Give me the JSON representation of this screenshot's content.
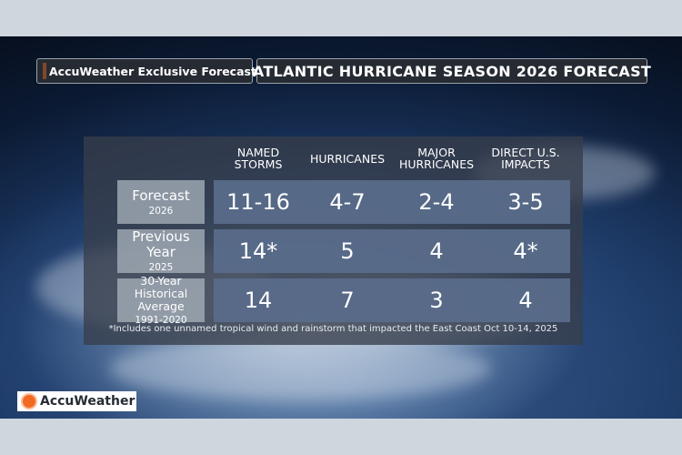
{
  "header": {
    "brand_label": "AccuWeather Exclusive Forecast",
    "title": "ATLANTIC HURRICANE SEASON 2026 FORECAST",
    "brand_icon": "accuweather-sun-icon"
  },
  "table": {
    "columns": [
      {
        "label": "NAMED\nSTORMS"
      },
      {
        "label": "HURRICANES"
      },
      {
        "label": "MAJOR\nHURRICANES"
      },
      {
        "label": "DIRECT U.S.\nIMPACTS"
      }
    ],
    "rows": [
      {
        "label": "Forecast",
        "sub": "2026",
        "values": [
          "11-16",
          "4-7",
          "2-4",
          "3-5"
        ]
      },
      {
        "label": "Previous Year",
        "sub": "2025",
        "values": [
          "14*",
          "5",
          "4",
          "4*"
        ]
      },
      {
        "label": "30-Year Historical Average",
        "sub": "1991-2020",
        "values": [
          "14",
          "7",
          "3",
          "4"
        ]
      }
    ],
    "footnote": "*Includes one unnamed tropical wind and rainstorm that impacted the East Coast Oct 10-14, 2025"
  },
  "logo": {
    "text": "AccuWeather",
    "icon": "accuweather-sun-icon"
  },
  "colors": {
    "brand_orange": "#f26a21",
    "cell_blue": "#586c8a",
    "label_gray": "#a5afba"
  }
}
